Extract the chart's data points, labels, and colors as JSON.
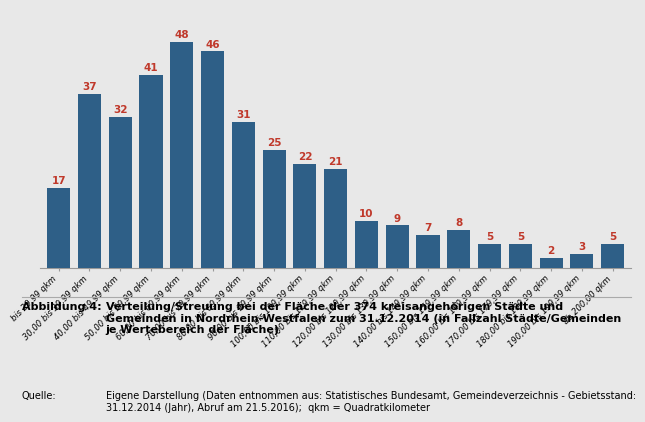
{
  "categories": [
    "bis 29,99 qkm",
    "30,00 bis 39,99 qkm",
    "40,00 bis 49,99 qkm",
    "50,00 bis 59,99 qkm",
    "60,00 bis 69,99 qkm",
    "70,00 bis 79,99 qkm",
    "80,00 bis 89,99 qkm",
    "90,00 bis 99,99 qkm",
    "100,00 bis 109,99 qkm",
    "110,00 bis 119,99 qkm",
    "120,00 bis 129,99 qkm",
    "130,00 bis 139,99 qkm",
    "140,00 bis 149,99 qkm",
    "150,00 bis 159,99 qkm",
    "160,00 bis 169,99 qkm",
    "170,00 bis 179,99 qkm",
    "180,00 bis 189,99 qkm",
    "190,00 bis 199,99 qkm",
    "ab 200,00 qkm"
  ],
  "values": [
    17,
    37,
    32,
    41,
    48,
    46,
    31,
    25,
    22,
    21,
    10,
    9,
    7,
    8,
    5,
    5,
    2,
    3,
    5
  ],
  "bar_color": "#2e5f87",
  "label_color": "#c0392b",
  "background_color": "#e8e8e8",
  "plot_background": "#e8e8e8",
  "caption_bold": "Abbildung 4:",
  "caption_text": "Verteilung/Streuung bei der Fläche der 374 kreisangehörigen Städte und\nGemeinden in Nordrhein-Westfalen zum 31.12.2014 (in Fallzahl Städte/Gemeinden\nje Wertebereich der Fläche)",
  "source_bold": "Quelle:",
  "source_text": "Eigene Darstellung (Daten entnommen aus: Statistisches Bundesamt, Gemeindeverzeichnis - Gebietsstand:\n31.12.2014 (Jahr), Abruf am 21.5.2016);  qkm = Quadratkilometer",
  "ylim": [
    0,
    55
  ],
  "bar_label_fontsize": 7.5,
  "tick_label_fontsize": 6.0,
  "caption_fontsize": 8.0,
  "source_fontsize": 7.0
}
